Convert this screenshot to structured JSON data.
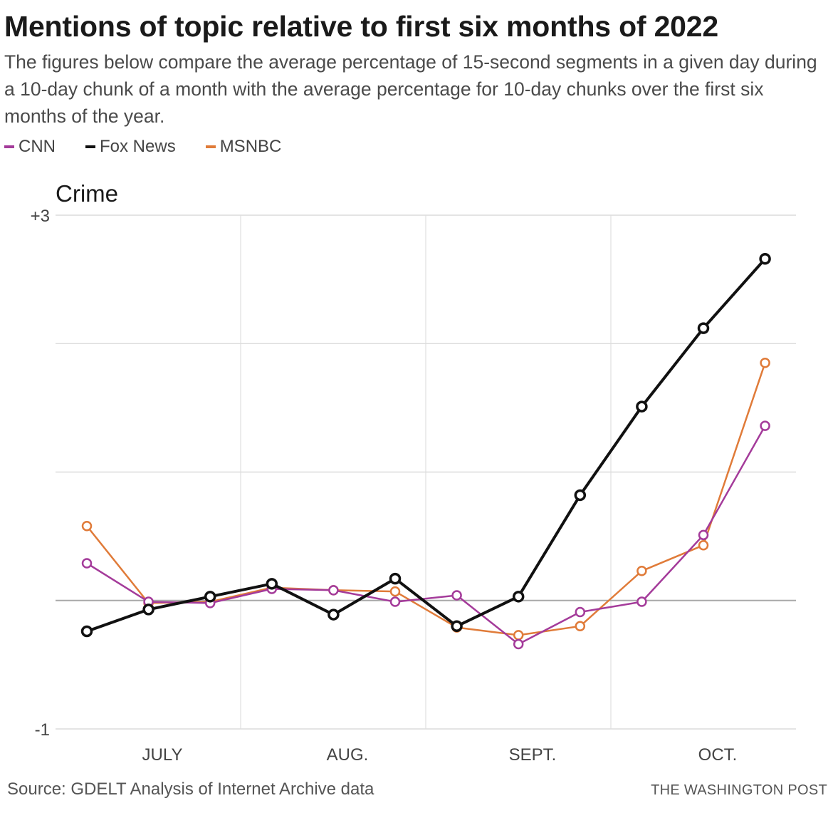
{
  "header": {
    "title": "Mentions of topic relative to first six months of 2022",
    "subtitle": "The figures below compare the average percentage of 15-second segments in a given day during a 10-day chunk of a month with the average percentage for 10-day chunks over the first six months of the year."
  },
  "legend": [
    {
      "label": "CNN",
      "color": "#a43b9a"
    },
    {
      "label": "Fox News",
      "color": "#111111"
    },
    {
      "label": "MSNBC",
      "color": "#e07b39"
    }
  ],
  "footer": {
    "source": "Source: GDELT Analysis of Internet Archive data",
    "credit": "THE WASHINGTON POST"
  },
  "chart_data": {
    "type": "line",
    "title": "Crime",
    "xlabel": "",
    "ylabel": "",
    "ylim": [
      -1,
      3
    ],
    "y_ticks": [
      {
        "value": 3,
        "label": "+3"
      },
      {
        "value": 2,
        "label": ""
      },
      {
        "value": 1,
        "label": ""
      },
      {
        "value": 0,
        "label": ""
      },
      {
        "value": -1,
        "label": "-1"
      }
    ],
    "month_labels": [
      "JULY",
      "AUG.",
      "SEPT.",
      "OCT."
    ],
    "x": [
      1,
      2,
      3,
      4,
      5,
      6,
      7,
      8,
      9,
      10,
      11,
      12
    ],
    "grid": true,
    "legend_position": "top-left",
    "series": [
      {
        "name": "CNN",
        "color": "#a43b9a",
        "values": [
          0.29,
          -0.01,
          -0.02,
          0.09,
          0.08,
          -0.01,
          0.04,
          -0.34,
          -0.09,
          -0.01,
          0.51,
          1.36
        ]
      },
      {
        "name": "Fox News",
        "color": "#111111",
        "values": [
          -0.24,
          -0.07,
          0.03,
          0.13,
          -0.11,
          0.17,
          -0.2,
          0.03,
          0.82,
          1.51,
          2.12,
          2.66
        ]
      },
      {
        "name": "MSNBC",
        "color": "#e07b39",
        "values": [
          0.58,
          -0.02,
          -0.01,
          0.1,
          0.08,
          0.07,
          -0.21,
          -0.27,
          -0.2,
          0.23,
          0.43,
          1.85
        ]
      }
    ]
  }
}
